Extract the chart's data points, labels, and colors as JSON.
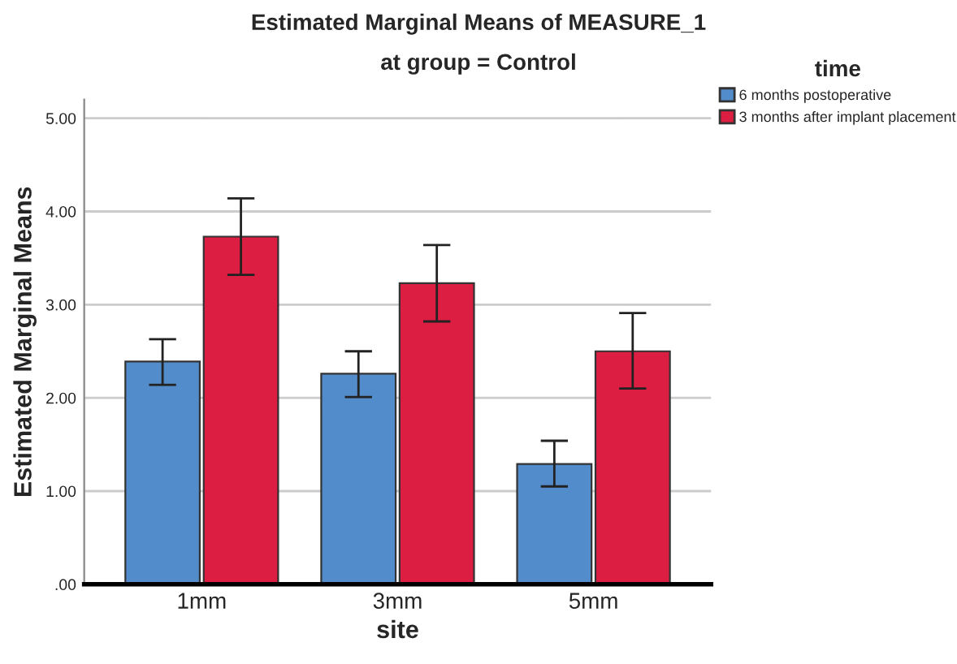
{
  "chart_data": {
    "type": "bar",
    "title": "Estimated Marginal Means of MEASURE_1",
    "subtitle": "at group = Control",
    "xlabel": "site",
    "ylabel": "Estimated Marginal Means",
    "legend_title": "time",
    "categories": [
      "1mm",
      "3mm",
      "5mm"
    ],
    "series": [
      {
        "name": "6 months postoperative",
        "color": "#538ccb",
        "values": [
          2.39,
          2.26,
          1.29
        ],
        "errors": [
          [
            2.14,
            2.63
          ],
          [
            2.01,
            2.5
          ],
          [
            1.05,
            1.54
          ]
        ]
      },
      {
        "name": "3 months after implant placement",
        "color": "#dc1e43",
        "values": [
          3.73,
          3.23,
          2.5
        ],
        "errors": [
          [
            3.32,
            4.14
          ],
          [
            2.82,
            3.64
          ],
          [
            2.1,
            2.91
          ]
        ]
      }
    ],
    "ylim": [
      0,
      5.2
    ],
    "yticks": [
      {
        "value": 0,
        "label": ".00"
      },
      {
        "value": 1,
        "label": "1.00"
      },
      {
        "value": 2,
        "label": "2.00"
      },
      {
        "value": 3,
        "label": "3.00"
      },
      {
        "value": 4,
        "label": "4.00"
      },
      {
        "value": 5,
        "label": "5.00"
      }
    ],
    "grid": "y",
    "legend": "top right"
  }
}
